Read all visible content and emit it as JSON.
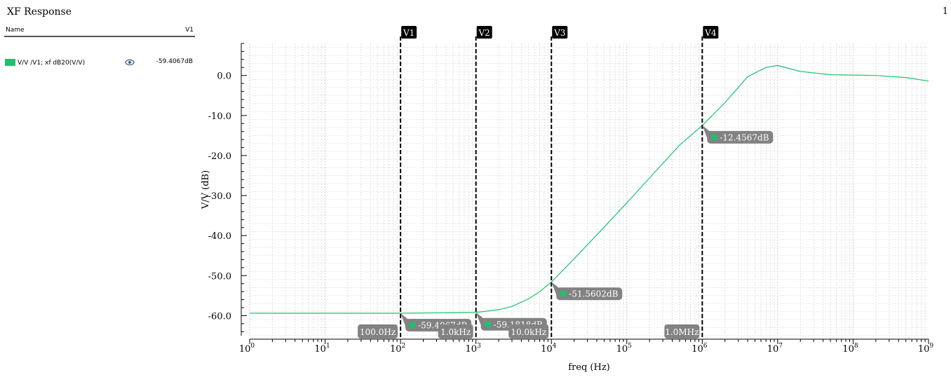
{
  "window": {
    "title": "XF Response",
    "page_number": "1"
  },
  "legend": {
    "header_name": "Name",
    "header_col": "V1",
    "entries": [
      {
        "label": "V/V /V1; xf dB20(V/V)",
        "value": "-59.4067dB",
        "color": "#19c36c",
        "icon": "eye-icon"
      }
    ]
  },
  "chart_data": {
    "type": "line",
    "xlabel": "freq (Hz)",
    "ylabel": "V/V (dB)",
    "xscale": "log",
    "xlim": [
      1,
      1000000000
    ],
    "ylim": [
      -65,
      8
    ],
    "x_tick_labels": [
      "10^0",
      "10^1",
      "10^2",
      "10^3",
      "10^4",
      "10^5",
      "10^6",
      "10^7",
      "10^8",
      "10^9"
    ],
    "y_ticks": [
      0,
      -10,
      -20,
      -30,
      -40,
      -50,
      -60
    ],
    "y_tick_labels": [
      "0.0",
      "-10.0",
      "-20.0",
      "-30.0",
      "-40.0",
      "-50.0",
      "-60.0"
    ],
    "grid": true,
    "series": [
      {
        "name": "V/V /V1; xf dB20(V/V)",
        "color": "#19c36c",
        "x": [
          1,
          10,
          100,
          1000,
          2000,
          3000,
          5000,
          7000,
          10000,
          20000,
          50000,
          100000,
          200000,
          500000,
          1000000,
          2000000,
          4000000,
          7000000,
          10000000,
          20000000,
          50000000,
          100000000,
          200000000,
          500000000,
          1000000000
        ],
        "y": [
          -59.4,
          -59.4,
          -59.4,
          -59.2,
          -58.5,
          -57.7,
          -55.8,
          -54.0,
          -51.6,
          -45.8,
          -37.9,
          -31.8,
          -25.6,
          -17.4,
          -12.5,
          -6.8,
          -0.3,
          2.0,
          2.5,
          1.0,
          0.2,
          0.1,
          0.0,
          -0.5,
          -1.4
        ]
      }
    ],
    "markers": [
      {
        "name": "V1",
        "x": 100,
        "x_label": "100.0Hz",
        "y_label": "-59.4067dB",
        "y": -59.4067
      },
      {
        "name": "V2",
        "x": 1000,
        "x_label": "1.0kHz",
        "y_label": "-59.1818dB",
        "y": -59.1818
      },
      {
        "name": "V3",
        "x": 10000,
        "x_label": "10.0kHz",
        "y_label": "-51.5602dB",
        "y": -51.5602
      },
      {
        "name": "V4",
        "x": 1000000,
        "x_label": "1.0MHz",
        "y_label": "-12.4567dB",
        "y": -12.4567
      }
    ]
  }
}
